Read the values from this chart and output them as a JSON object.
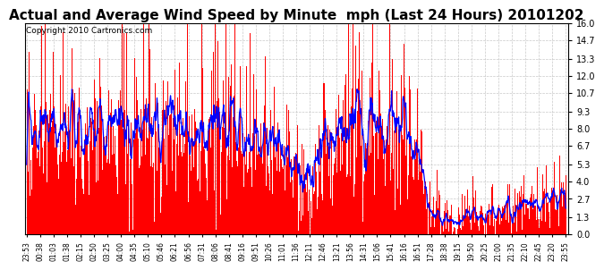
{
  "title": "Actual and Average Wind Speed by Minute  mph (Last 24 Hours) 20101202",
  "copyright": "Copyright 2010 Cartronics.com",
  "yticks": [
    0.0,
    1.3,
    2.7,
    4.0,
    5.3,
    6.7,
    8.0,
    9.3,
    10.7,
    12.0,
    13.3,
    14.7,
    16.0
  ],
  "ymax": 16.0,
  "ymin": 0.0,
  "bar_color": "#FF0000",
  "line_color": "#0000FF",
  "bg_color": "#FFFFFF",
  "grid_color": "#BBBBBB",
  "title_fontsize": 11,
  "copyright_fontsize": 6.5,
  "x_labels": [
    "23:53",
    "00:38",
    "01:03",
    "01:38",
    "02:15",
    "02:50",
    "03:25",
    "04:00",
    "04:35",
    "05:10",
    "05:46",
    "06:21",
    "06:56",
    "07:31",
    "08:06",
    "08:41",
    "09:16",
    "09:51",
    "10:26",
    "11:01",
    "11:36",
    "12:11",
    "12:46",
    "13:21",
    "13:56",
    "14:31",
    "15:06",
    "15:41",
    "16:16",
    "16:51",
    "17:28",
    "18:38",
    "19:15",
    "19:50",
    "20:25",
    "21:00",
    "21:35",
    "22:10",
    "22:45",
    "23:20",
    "23:55"
  ]
}
